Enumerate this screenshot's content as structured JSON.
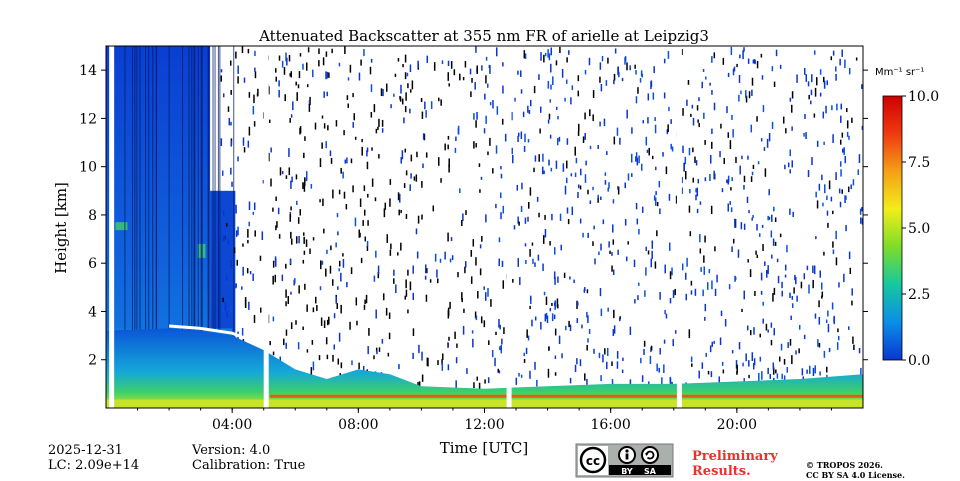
{
  "chart_data": {
    "type": "heatmap",
    "title": "Attenuated Backscatter at 355 nm FR of arielle at Leipzig3",
    "xlabel": "Time [UTC]",
    "ylabel": "Height [km]",
    "x_ticks": [
      {
        "value": 4,
        "label": "04:00"
      },
      {
        "value": 8,
        "label": "08:00"
      },
      {
        "value": 12,
        "label": "12:00"
      },
      {
        "value": 16,
        "label": "16:00"
      },
      {
        "value": 20,
        "label": "20:00"
      }
    ],
    "xlim": [
      0,
      24
    ],
    "y_ticks": [
      {
        "value": 2,
        "label": "2"
      },
      {
        "value": 4,
        "label": "4"
      },
      {
        "value": 6,
        "label": "6"
      },
      {
        "value": 8,
        "label": "8"
      },
      {
        "value": 10,
        "label": "10"
      },
      {
        "value": 12,
        "label": "12"
      },
      {
        "value": 14,
        "label": "14"
      }
    ],
    "ylim": [
      0,
      15
    ],
    "colorbar": {
      "unit_label": "Mm⁻¹ sr⁻¹",
      "range": [
        0,
        10
      ],
      "ticks": [
        {
          "value": 0,
          "label": "0.0"
        },
        {
          "value": 2.5,
          "label": "2.5"
        },
        {
          "value": 5,
          "label": "5.0"
        },
        {
          "value": 7.5,
          "label": "7.5"
        },
        {
          "value": 10,
          "label": "10.0"
        }
      ],
      "colors": [
        "#0a35d0",
        "#0a8ee8",
        "#15c8a0",
        "#7ddc2a",
        "#f2ee1a",
        "#f4a015",
        "#ef3a12",
        "#d00000"
      ]
    },
    "boundary_layer_top_km": [
      [
        0,
        3.2
      ],
      [
        2,
        3.3
      ],
      [
        3,
        3.2
      ],
      [
        4,
        3.0
      ],
      [
        5,
        2.4
      ],
      [
        6,
        1.6
      ],
      [
        7,
        1.2
      ],
      [
        8,
        1.6
      ],
      [
        9,
        1.4
      ],
      [
        10,
        0.9
      ],
      [
        12,
        0.8
      ],
      [
        14,
        0.9
      ],
      [
        16,
        1.0
      ],
      [
        18,
        1.0
      ],
      [
        20,
        1.1
      ],
      [
        22,
        1.2
      ],
      [
        24,
        1.4
      ]
    ],
    "residual_layer_km": [
      [
        2,
        3.4
      ],
      [
        3,
        3.3
      ],
      [
        4,
        3.1
      ],
      [
        5,
        2.6
      ]
    ],
    "data_gaps_hours": [
      0.1,
      5.0,
      12.7,
      18.1
    ]
  },
  "footer": {
    "date": "2025-12-31",
    "lc": "LC: 2.09e+14",
    "version": "Version: 4.0",
    "calibration": "Calibration: True",
    "preliminary_line1": "Preliminary",
    "preliminary_line2": "Results.",
    "copyright_line1": "© TROPOS 2026.",
    "copyright_line2": "CC BY SA 4.0 License.",
    "license_badge": [
      "BY",
      "SA"
    ]
  }
}
